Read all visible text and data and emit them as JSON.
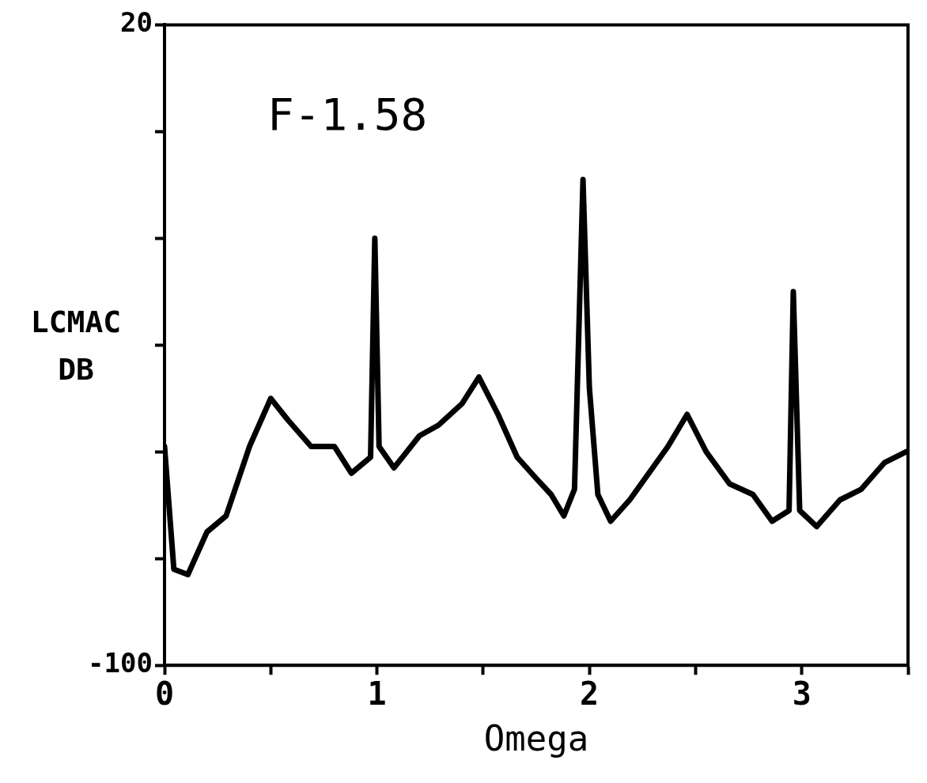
{
  "chart_data": {
    "type": "line",
    "xlabel": "Omega",
    "ylabel": "LCMAC DB",
    "annotations": [
      "F-1.58"
    ],
    "xlim": [
      0,
      3.5
    ],
    "xticks": [
      {
        "value": 0,
        "label": "0"
      },
      {
        "value": 0.5,
        "label": null
      },
      {
        "value": 1,
        "label": "1"
      },
      {
        "value": 1.5,
        "label": null
      },
      {
        "value": 2,
        "label": "2"
      },
      {
        "value": 2.5,
        "label": null
      },
      {
        "value": 3,
        "label": "3"
      },
      {
        "value": 3.5,
        "label": null
      }
    ],
    "ylim": [
      -100,
      20
    ],
    "yticks": [
      {
        "value": -100,
        "label": "-100"
      },
      {
        "value": -80,
        "label": null
      },
      {
        "value": -60,
        "label": null
      },
      {
        "value": -40,
        "label": null
      },
      {
        "value": -20,
        "label": null
      },
      {
        "value": 0,
        "label": null
      },
      {
        "value": 20,
        "label": "20"
      }
    ],
    "grid": false,
    "legend": false,
    "marker": "none",
    "line_style": "solid",
    "series": [
      {
        "color": "#000000",
        "x": [
          0,
          0.044,
          0.11,
          0.2,
          0.29,
          0.4,
          0.5,
          0.58,
          0.69,
          0.8,
          0.88,
          0.97,
          0.99,
          1.01,
          1.08,
          1.2,
          1.29,
          1.4,
          1.48,
          1.57,
          1.66,
          1.75,
          1.82,
          1.88,
          1.93,
          1.97,
          2.0,
          2.04,
          2.1,
          2.19,
          2.28,
          2.37,
          2.46,
          2.55,
          2.66,
          2.77,
          2.86,
          2.94,
          2.96,
          2.99,
          3.07,
          3.18,
          3.28,
          3.39,
          3.49
        ],
        "values": [
          -59,
          -82,
          -83,
          -75,
          -72,
          -59,
          -50,
          -54,
          -59,
          -59,
          -64,
          -61,
          -20,
          -59,
          -63,
          -57,
          -55,
          -51,
          -46,
          -53,
          -61,
          -65,
          -68,
          -72,
          -67,
          -9,
          -48,
          -68,
          -73,
          -69,
          -64,
          -59,
          -53,
          -60,
          -66,
          -68,
          -73,
          -71,
          -30,
          -71,
          -74,
          -69,
          -67,
          -62,
          -60
        ]
      }
    ]
  }
}
